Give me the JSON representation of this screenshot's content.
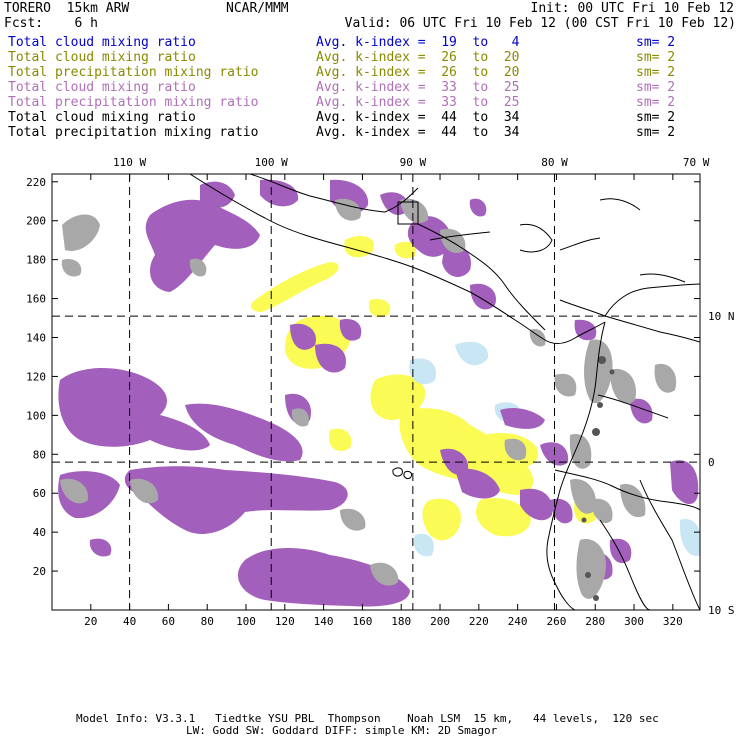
{
  "header": {
    "model": "TORERO  15km ARW",
    "center": "NCAR/MMM",
    "init": "Init: 00 UTC Fri 10 Feb 12",
    "fcst": "Fcst:    6 h",
    "valid": "Valid: 06 UTC Fri 10 Feb 12 (00 CST Fri 10 Feb 12)"
  },
  "legend": [
    {
      "field": "Total cloud mixing ratio",
      "index": "Avg. k-index =  19  to   4",
      "sm": "sm= 2",
      "color": "#0000cc"
    },
    {
      "field": "Total cloud mixing ratio",
      "index": "Avg. k-index =  26  to  20",
      "sm": "sm= 2",
      "color": "#8a8a00"
    },
    {
      "field": "Total precipitation mixing ratio",
      "index": "Avg. k-index =  26  to  20",
      "sm": "sm= 2",
      "color": "#8a8a00"
    },
    {
      "field": "Total cloud mixing ratio",
      "index": "Avg. k-index =  33  to  25",
      "sm": "sm= 2",
      "color": "#b070b8"
    },
    {
      "field": "Total precipitation mixing ratio",
      "index": "Avg. k-index =  33  to  25",
      "sm": "sm= 2",
      "color": "#b070b8"
    },
    {
      "field": "Total cloud mixing ratio",
      "index": "Avg. k-index =  44  to  34",
      "sm": "sm= 2",
      "color": "#000000"
    },
    {
      "field": "Total precipitation mixing ratio",
      "index": "Avg. k-index =  44  to  34",
      "sm": "sm= 2",
      "color": "#000000"
    }
  ],
  "map": {
    "x_ticks": [
      20,
      40,
      60,
      80,
      100,
      120,
      140,
      160,
      180,
      200,
      220,
      240,
      260,
      280,
      300,
      320
    ],
    "y_ticks": [
      20,
      40,
      60,
      80,
      100,
      120,
      140,
      160,
      180,
      200,
      220
    ],
    "x_range": [
      0,
      334
    ],
    "y_range": [
      0,
      224
    ],
    "lon_labels": [
      {
        "text": "110 W",
        "x": 40
      },
      {
        "text": "100 W",
        "x": 113
      },
      {
        "text": "90 W",
        "x": 186
      },
      {
        "text": "80 W",
        "x": 259
      },
      {
        "text": "70 W",
        "x": 332
      }
    ],
    "lat_labels": [
      {
        "text": "10 N",
        "y": 151
      },
      {
        "text": "0",
        "y": 76
      },
      {
        "text": "10 S",
        "y": 0
      }
    ],
    "grid_x": [
      40,
      113,
      186,
      259
    ],
    "grid_y": [
      151,
      76
    ],
    "colors": {
      "purple": "#a25fbb",
      "gray": "#a8a8a8",
      "yellow": "#fbfb55",
      "lightblue": "#c8e6f4",
      "coast": "#000000"
    }
  },
  "footer": {
    "line1": "Model Info: V3.3.1   Tiedtke YSU PBL  Thompson    Noah LSM  15 km,   44 levels,  120 sec",
    "line2": "LW: Godd SW: Goddard DIFF: simple KM: 2D Smagor"
  }
}
